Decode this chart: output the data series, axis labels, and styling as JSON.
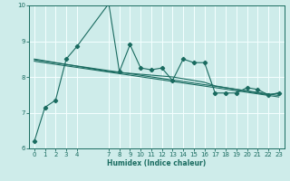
{
  "xlabel": "Humidex (Indice chaleur)",
  "bg_color": "#ceecea",
  "line_color": "#1a6b60",
  "grid_color": "#f5ffff",
  "ylim": [
    6,
    10
  ],
  "xlim": [
    -0.5,
    23.5
  ],
  "yticks": [
    6,
    7,
    8,
    9,
    10
  ],
  "xticks": [
    0,
    1,
    2,
    3,
    4,
    7,
    8,
    9,
    10,
    11,
    12,
    13,
    14,
    15,
    16,
    17,
    18,
    19,
    20,
    21,
    22,
    23
  ],
  "series1": [
    [
      0,
      6.2
    ],
    [
      1,
      7.15
    ],
    [
      2,
      7.35
    ],
    [
      3,
      8.5
    ],
    [
      4,
      8.85
    ],
    [
      7,
      10.05
    ],
    [
      8,
      8.15
    ],
    [
      9,
      8.9
    ],
    [
      10,
      8.25
    ],
    [
      11,
      8.2
    ],
    [
      12,
      8.25
    ],
    [
      13,
      7.9
    ],
    [
      14,
      8.5
    ],
    [
      15,
      8.4
    ],
    [
      16,
      8.4
    ],
    [
      17,
      7.55
    ],
    [
      18,
      7.55
    ],
    [
      19,
      7.55
    ],
    [
      20,
      7.7
    ],
    [
      21,
      7.65
    ],
    [
      22,
      7.5
    ],
    [
      23,
      7.55
    ]
  ],
  "series2": [
    [
      0,
      8.5
    ],
    [
      7,
      8.15
    ],
    [
      9,
      8.1
    ],
    [
      13,
      8.0
    ],
    [
      16,
      7.85
    ],
    [
      17,
      7.75
    ],
    [
      22,
      7.5
    ],
    [
      23,
      7.55
    ]
  ],
  "series3": [
    [
      0,
      8.48
    ],
    [
      23,
      7.48
    ]
  ],
  "series4": [
    [
      0,
      8.44
    ],
    [
      23,
      7.44
    ]
  ],
  "figsize": [
    3.2,
    2.0
  ],
  "dpi": 100
}
